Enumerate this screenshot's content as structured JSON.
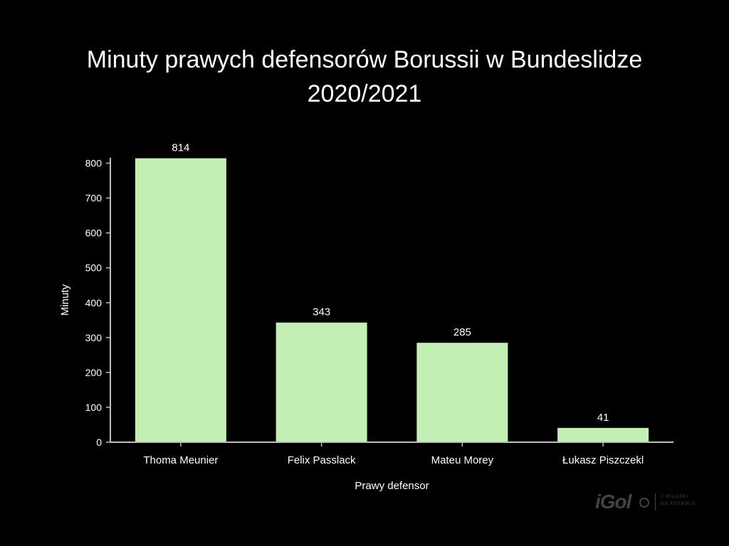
{
  "chart_data": {
    "type": "bar",
    "title_line1": "Minuty prawych defensorów Borussii w Bundeslidze",
    "title_line2": "2020/2021",
    "xlabel": "Prawy defensor",
    "ylabel": "Minuty",
    "categories": [
      "Thoma Meunier",
      "Felix Passlack",
      "Mateu Morey",
      "Łukasz Piszczekl"
    ],
    "values": [
      814,
      343,
      285,
      41
    ],
    "data_labels": [
      "814",
      "343",
      "285",
      "41"
    ],
    "ylim": [
      0,
      800
    ],
    "yticks": [
      0,
      100,
      200,
      300,
      400,
      500,
      600,
      700,
      800
    ],
    "ytick_labels": [
      "0",
      "100",
      "200",
      "300",
      "400",
      "500",
      "600",
      "700",
      "800"
    ],
    "grid": false,
    "bar_color": "#c2efb4",
    "axis_color": "#bfbfbf"
  },
  "watermark": {
    "logo": "iGol",
    "tagline_line1": "Z MIŁOŚCI",
    "tagline_line2": "DO FUTBOLU"
  }
}
